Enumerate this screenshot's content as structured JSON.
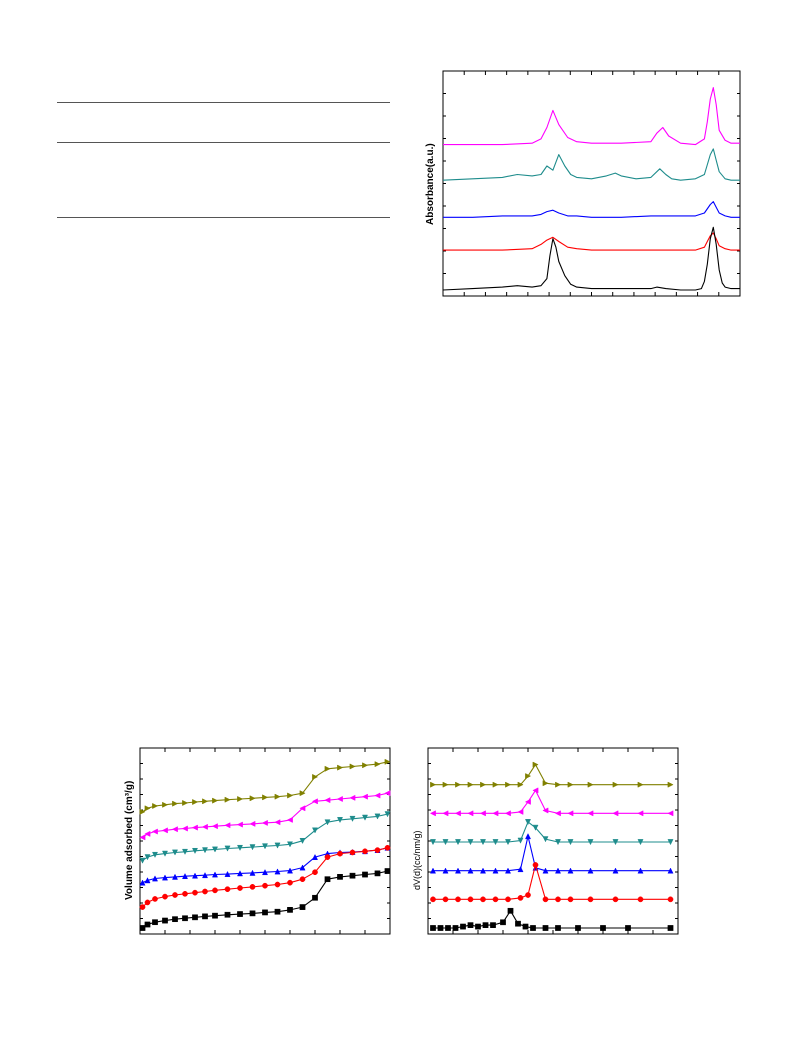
{
  "chart_data": [
    {
      "type": "line",
      "ylabel": "Absorbance(a.u.)",
      "xlabel": "",
      "xlim": [
        0,
        100
      ],
      "series": [
        {
          "color": "#ff00ff",
          "offset": 5.1,
          "x": [
            0,
            10,
            20,
            30,
            33,
            35,
            37,
            39,
            42,
            45,
            50,
            60,
            70,
            72,
            74,
            76,
            80,
            85,
            88,
            89,
            90,
            91,
            92,
            93,
            95,
            97,
            100
          ],
          "y": [
            0,
            0,
            0,
            0.05,
            0.2,
            0.6,
            1.2,
            0.7,
            0.25,
            0.1,
            0.05,
            0.05,
            0.1,
            0.4,
            0.6,
            0.3,
            0.05,
            0,
            0.2,
            0.8,
            1.6,
            2.0,
            1.4,
            0.5,
            0.15,
            0.05,
            0.05
          ]
        },
        {
          "color": "#1e8c8c",
          "offset": 3.85,
          "x": [
            0,
            10,
            20,
            25,
            30,
            33,
            35,
            37,
            39,
            41,
            43,
            45,
            50,
            55,
            58,
            60,
            65,
            70,
            73,
            75,
            77,
            80,
            85,
            88,
            90,
            91,
            92,
            93,
            95,
            97,
            100
          ],
          "y": [
            0,
            0.05,
            0.1,
            0.2,
            0.15,
            0.2,
            0.5,
            0.35,
            0.9,
            0.5,
            0.2,
            0.1,
            0.05,
            0.15,
            0.25,
            0.15,
            0.05,
            0.1,
            0.4,
            0.2,
            0.05,
            0,
            0.05,
            0.2,
            0.9,
            1.1,
            0.7,
            0.3,
            0.05,
            0,
            0
          ]
        },
        {
          "color": "#0000ff",
          "offset": 2.55,
          "x": [
            0,
            10,
            20,
            30,
            33,
            35,
            37,
            39,
            42,
            45,
            50,
            60,
            70,
            80,
            85,
            88,
            90,
            91,
            92,
            93,
            95,
            97,
            100
          ],
          "y": [
            0,
            0,
            0.05,
            0.05,
            0.1,
            0.2,
            0.25,
            0.15,
            0.05,
            0.05,
            0,
            0,
            0.05,
            0.05,
            0.05,
            0.15,
            0.45,
            0.55,
            0.35,
            0.15,
            0.05,
            0,
            0
          ]
        },
        {
          "color": "#ff0000",
          "offset": 1.4,
          "x": [
            0,
            10,
            20,
            30,
            33,
            35,
            37,
            39,
            42,
            45,
            50,
            60,
            70,
            80,
            85,
            88,
            89,
            90,
            91,
            92,
            93,
            95,
            97,
            100
          ],
          "y": [
            0,
            0,
            0,
            0.05,
            0.2,
            0.35,
            0.45,
            0.3,
            0.1,
            0.05,
            0,
            0,
            0,
            0,
            0,
            0.1,
            0.3,
            0.5,
            0.6,
            0.4,
            0.15,
            0.05,
            0,
            0
          ]
        },
        {
          "color": "#000000",
          "offset": 0.0,
          "x": [
            0,
            10,
            20,
            25,
            30,
            33,
            35,
            36,
            37,
            38,
            39,
            41,
            43,
            45,
            50,
            60,
            70,
            72,
            75,
            80,
            85,
            87,
            88,
            89,
            90,
            91,
            92,
            93,
            94,
            95,
            97,
            100
          ],
          "y": [
            0,
            0.05,
            0.1,
            0.15,
            0.1,
            0.15,
            0.4,
            1.2,
            1.8,
            1.5,
            1.0,
            0.5,
            0.2,
            0.1,
            0.05,
            0.05,
            0.05,
            0.1,
            0.05,
            0,
            0,
            0.05,
            0.3,
            0.9,
            1.8,
            2.2,
            1.6,
            0.7,
            0.25,
            0.1,
            0.05,
            0.05
          ]
        }
      ]
    },
    {
      "type": "line",
      "ylabel": "Volume adsorbed (cm³/g)",
      "xlabel": "",
      "xlim": [
        0,
        1
      ],
      "series": [
        {
          "color": "#808000",
          "marker": "triangle-right",
          "offset": 5.0,
          "x": [
            0.01,
            0.03,
            0.06,
            0.1,
            0.14,
            0.18,
            0.22,
            0.26,
            0.3,
            0.35,
            0.4,
            0.45,
            0.5,
            0.55,
            0.6,
            0.65,
            0.7,
            0.75,
            0.8,
            0.85,
            0.9,
            0.95,
            0.99
          ],
          "y": [
            0,
            0.15,
            0.25,
            0.3,
            0.35,
            0.38,
            0.42,
            0.45,
            0.48,
            0.52,
            0.55,
            0.58,
            0.62,
            0.65,
            0.7,
            0.8,
            1.5,
            1.85,
            1.9,
            1.95,
            2.0,
            2.05,
            2.15
          ]
        },
        {
          "color": "#ff00ff",
          "marker": "triangle-left",
          "offset": 3.9,
          "x": [
            0.01,
            0.03,
            0.06,
            0.1,
            0.14,
            0.18,
            0.22,
            0.26,
            0.3,
            0.35,
            0.4,
            0.45,
            0.5,
            0.55,
            0.6,
            0.65,
            0.7,
            0.75,
            0.8,
            0.85,
            0.9,
            0.95,
            0.99
          ],
          "y": [
            0,
            0.15,
            0.25,
            0.3,
            0.35,
            0.38,
            0.42,
            0.45,
            0.48,
            0.52,
            0.55,
            0.58,
            0.62,
            0.65,
            0.75,
            1.25,
            1.55,
            1.6,
            1.65,
            1.7,
            1.75,
            1.8,
            1.9
          ]
        },
        {
          "color": "#1e8c8c",
          "marker": "triangle-down",
          "offset": 2.9,
          "x": [
            0.01,
            0.03,
            0.06,
            0.1,
            0.14,
            0.18,
            0.22,
            0.26,
            0.3,
            0.35,
            0.4,
            0.45,
            0.5,
            0.55,
            0.6,
            0.65,
            0.7,
            0.75,
            0.8,
            0.85,
            0.9,
            0.95,
            0.99
          ],
          "y": [
            0,
            0.15,
            0.25,
            0.3,
            0.35,
            0.38,
            0.42,
            0.45,
            0.48,
            0.52,
            0.55,
            0.58,
            0.62,
            0.65,
            0.7,
            0.85,
            1.3,
            1.65,
            1.75,
            1.8,
            1.85,
            1.9,
            2.0
          ]
        },
        {
          "color": "#0000ff",
          "marker": "triangle-up",
          "offset": 1.95,
          "x": [
            0.01,
            0.03,
            0.06,
            0.1,
            0.14,
            0.18,
            0.22,
            0.26,
            0.3,
            0.35,
            0.4,
            0.45,
            0.5,
            0.55,
            0.6,
            0.65,
            0.7,
            0.75,
            0.8,
            0.85,
            0.9,
            0.95,
            0.99
          ],
          "y": [
            0,
            0.1,
            0.18,
            0.22,
            0.25,
            0.28,
            0.3,
            0.32,
            0.35,
            0.37,
            0.4,
            0.42,
            0.45,
            0.48,
            0.52,
            0.65,
            1.1,
            1.25,
            1.3,
            1.32,
            1.35,
            1.4,
            1.5
          ]
        },
        {
          "color": "#ff0000",
          "marker": "circle",
          "offset": 0.9,
          "x": [
            0.01,
            0.03,
            0.06,
            0.1,
            0.14,
            0.18,
            0.22,
            0.26,
            0.3,
            0.35,
            0.4,
            0.45,
            0.5,
            0.55,
            0.6,
            0.65,
            0.7,
            0.75,
            0.8,
            0.85,
            0.9,
            0.95,
            0.99
          ],
          "y": [
            0,
            0.2,
            0.35,
            0.45,
            0.52,
            0.57,
            0.62,
            0.67,
            0.72,
            0.77,
            0.82,
            0.87,
            0.92,
            0.97,
            1.05,
            1.2,
            1.5,
            2.15,
            2.3,
            2.35,
            2.4,
            2.45,
            2.55
          ]
        },
        {
          "color": "#000000",
          "marker": "square",
          "offset": 0.0,
          "x": [
            0.01,
            0.03,
            0.06,
            0.1,
            0.14,
            0.18,
            0.22,
            0.26,
            0.3,
            0.35,
            0.4,
            0.45,
            0.5,
            0.55,
            0.6,
            0.65,
            0.7,
            0.75,
            0.8,
            0.85,
            0.9,
            0.95,
            0.99
          ],
          "y": [
            0,
            0.15,
            0.25,
            0.32,
            0.38,
            0.42,
            0.46,
            0.5,
            0.53,
            0.57,
            0.6,
            0.63,
            0.67,
            0.7,
            0.78,
            0.9,
            1.3,
            2.1,
            2.2,
            2.25,
            2.3,
            2.35,
            2.45
          ]
        }
      ]
    },
    {
      "type": "line",
      "ylabel": "dV(d)(cc/nm/g)",
      "xlabel": "",
      "xlim": [
        0,
        100
      ],
      "series": [
        {
          "color": "#808000",
          "marker": "triangle-right",
          "offset": 5.0,
          "x": [
            2,
            7,
            12,
            17,
            22,
            27,
            32,
            37,
            40,
            43,
            47,
            52,
            57,
            65,
            75,
            85,
            97
          ],
          "y": [
            0,
            0,
            0,
            0,
            0,
            0,
            0,
            0,
            0.3,
            0.7,
            0.05,
            0,
            0,
            0,
            0,
            0,
            0
          ]
        },
        {
          "color": "#ff00ff",
          "marker": "triangle-left",
          "offset": 4.0,
          "x": [
            2,
            7,
            12,
            17,
            22,
            27,
            32,
            37,
            40,
            43,
            47,
            52,
            57,
            65,
            75,
            85,
            97
          ],
          "y": [
            0,
            0,
            0,
            0,
            0,
            0,
            0,
            0.05,
            0.4,
            0.8,
            0.1,
            0,
            0,
            0,
            0,
            0,
            0
          ]
        },
        {
          "color": "#1e8c8c",
          "marker": "triangle-down",
          "offset": 3.0,
          "x": [
            2,
            7,
            12,
            17,
            22,
            27,
            32,
            37,
            40,
            43,
            47,
            52,
            57,
            65,
            75,
            85,
            97
          ],
          "y": [
            0,
            0,
            0,
            0,
            0,
            0,
            0,
            0.05,
            0.7,
            0.5,
            0.1,
            0,
            0,
            0,
            0,
            0,
            0
          ]
        },
        {
          "color": "#0000ff",
          "marker": "triangle-up",
          "offset": 2.0,
          "x": [
            2,
            7,
            12,
            17,
            22,
            27,
            32,
            37,
            40,
            43,
            47,
            52,
            57,
            65,
            75,
            85,
            97
          ],
          "y": [
            0,
            0,
            0,
            0,
            0,
            0,
            0,
            0.05,
            1.2,
            0.1,
            0,
            0,
            0,
            0,
            0,
            0,
            0
          ]
        },
        {
          "color": "#ff0000",
          "marker": "circle",
          "offset": 1.0,
          "x": [
            2,
            7,
            12,
            17,
            22,
            27,
            32,
            37,
            40,
            43,
            47,
            52,
            57,
            65,
            75,
            85,
            97
          ],
          "y": [
            0,
            0,
            0,
            0,
            0,
            0,
            0,
            0.05,
            0.15,
            1.2,
            0,
            0,
            0,
            0,
            0,
            0,
            0
          ]
        },
        {
          "color": "#000000",
          "marker": "square",
          "offset": 0.0,
          "x": [
            2,
            5,
            8,
            11,
            14,
            17,
            20,
            23,
            26,
            30,
            33,
            36,
            39,
            42,
            47,
            52,
            60,
            70,
            80,
            97
          ],
          "y": [
            0,
            0,
            0,
            0,
            0.05,
            0.1,
            0.05,
            0.1,
            0.1,
            0.2,
            0.6,
            0.15,
            0.05,
            0,
            0,
            0,
            0,
            0,
            0,
            0
          ]
        }
      ]
    }
  ]
}
